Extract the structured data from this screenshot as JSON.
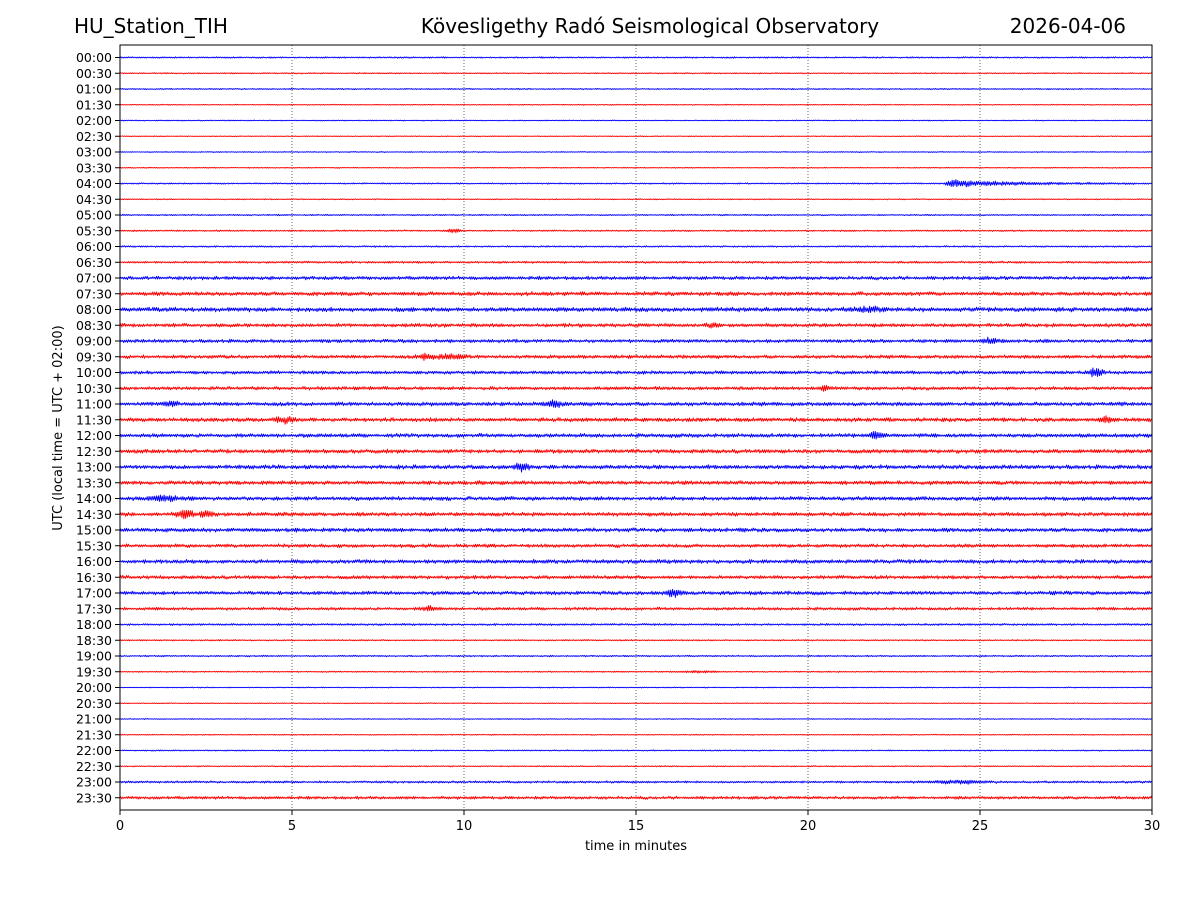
{
  "chart_data": {
    "type": "line",
    "title_left": "HU_Station_TIH",
    "title": "Kövesligethy Radó Seismological Observatory",
    "title_right": "2026-04-06",
    "xlabel": "time in minutes",
    "ylabel": "UTC (local time = UTC + 02:00)",
    "xlim": [
      0,
      30
    ],
    "x_ticks": [
      "0",
      "5",
      "10",
      "15",
      "20",
      "25",
      "30"
    ],
    "grid": "vertical dotted lines at x ticks",
    "trace_colors": [
      "#0000ff",
      "#ff0000"
    ],
    "rows": [
      {
        "label": "00:00",
        "amplitude": 1.5
      },
      {
        "label": "00:30",
        "amplitude": 1.2
      },
      {
        "label": "01:00",
        "amplitude": 1.3
      },
      {
        "label": "01:30",
        "amplitude": 1.0
      },
      {
        "label": "02:00",
        "amplitude": 1.0
      },
      {
        "label": "02:30",
        "amplitude": 0.9
      },
      {
        "label": "03:00",
        "amplitude": 1.0
      },
      {
        "label": "03:30",
        "amplitude": 1.0
      },
      {
        "label": "04:00",
        "amplitude": 1.4,
        "events": [
          {
            "t": 24.2,
            "amp": 8,
            "dur": 4.5
          }
        ]
      },
      {
        "label": "04:30",
        "amplitude": 1.1
      },
      {
        "label": "05:00",
        "amplitude": 1.4
      },
      {
        "label": "05:30",
        "amplitude": 1.6,
        "events": [
          {
            "t": 9.7,
            "amp": 4,
            "dur": 0.3
          }
        ]
      },
      {
        "label": "06:00",
        "amplitude": 1.6
      },
      {
        "label": "06:30",
        "amplitude": 2.2
      },
      {
        "label": "07:00",
        "amplitude": 3.5
      },
      {
        "label": "07:30",
        "amplitude": 4.0
      },
      {
        "label": "08:00",
        "amplitude": 4.5,
        "events": [
          {
            "t": 21.8,
            "amp": 5,
            "dur": 0.6
          }
        ]
      },
      {
        "label": "08:30",
        "amplitude": 3.8,
        "events": [
          {
            "t": 17.2,
            "amp": 5,
            "dur": 0.2
          }
        ]
      },
      {
        "label": "09:00",
        "amplitude": 3.5,
        "events": [
          {
            "t": 25.3,
            "amp": 4,
            "dur": 0.4
          }
        ]
      },
      {
        "label": "09:30",
        "amplitude": 3.6,
        "events": [
          {
            "t": 8.9,
            "amp": 6,
            "dur": 0.3
          },
          {
            "t": 9.6,
            "amp": 6,
            "dur": 0.5
          }
        ]
      },
      {
        "label": "10:00",
        "amplitude": 3.4,
        "events": [
          {
            "t": 28.4,
            "amp": 8,
            "dur": 0.3
          }
        ]
      },
      {
        "label": "10:30",
        "amplitude": 3.5,
        "events": [
          {
            "t": 20.5,
            "amp": 5,
            "dur": 0.2
          }
        ]
      },
      {
        "label": "11:00",
        "amplitude": 4.0,
        "events": [
          {
            "t": 12.6,
            "amp": 6,
            "dur": 0.4
          },
          {
            "t": 1.5,
            "amp": 5,
            "dur": 0.3
          }
        ]
      },
      {
        "label": "11:30",
        "amplitude": 4.0,
        "events": [
          {
            "t": 4.8,
            "amp": 6,
            "dur": 0.4
          },
          {
            "t": 28.7,
            "amp": 6,
            "dur": 0.3
          }
        ]
      },
      {
        "label": "12:00",
        "amplitude": 4.0,
        "events": [
          {
            "t": 22.0,
            "amp": 9,
            "dur": 0.3
          }
        ]
      },
      {
        "label": "12:30",
        "amplitude": 4.0
      },
      {
        "label": "13:00",
        "amplitude": 4.2,
        "events": [
          {
            "t": 11.7,
            "amp": 9,
            "dur": 0.3
          }
        ]
      },
      {
        "label": "13:30",
        "amplitude": 4.0
      },
      {
        "label": "14:00",
        "amplitude": 4.0,
        "events": [
          {
            "t": 1.3,
            "amp": 6,
            "dur": 0.5
          }
        ]
      },
      {
        "label": "14:30",
        "amplitude": 4.0,
        "events": [
          {
            "t": 1.9,
            "amp": 10,
            "dur": 0.3
          },
          {
            "t": 2.5,
            "amp": 6,
            "dur": 0.3
          }
        ]
      },
      {
        "label": "15:00",
        "amplitude": 4.0
      },
      {
        "label": "15:30",
        "amplitude": 3.6
      },
      {
        "label": "16:00",
        "amplitude": 4.0
      },
      {
        "label": "16:30",
        "amplitude": 3.6
      },
      {
        "label": "17:00",
        "amplitude": 3.8,
        "events": [
          {
            "t": 16.1,
            "amp": 7,
            "dur": 0.3
          }
        ]
      },
      {
        "label": "17:30",
        "amplitude": 3.0,
        "events": [
          {
            "t": 9.0,
            "amp": 5,
            "dur": 0.3
          }
        ]
      },
      {
        "label": "18:00",
        "amplitude": 2.0
      },
      {
        "label": "18:30",
        "amplitude": 1.4
      },
      {
        "label": "19:00",
        "amplitude": 1.5
      },
      {
        "label": "19:30",
        "amplitude": 1.3,
        "events": [
          {
            "t": 16.8,
            "amp": 2,
            "dur": 0.6
          }
        ]
      },
      {
        "label": "20:00",
        "amplitude": 1.0
      },
      {
        "label": "20:30",
        "amplitude": 0.9
      },
      {
        "label": "21:00",
        "amplitude": 1.0
      },
      {
        "label": "21:30",
        "amplitude": 1.0
      },
      {
        "label": "22:00",
        "amplitude": 1.2
      },
      {
        "label": "22:30",
        "amplitude": 1.2
      },
      {
        "label": "23:00",
        "amplitude": 2.2,
        "events": [
          {
            "t": 24.3,
            "amp": 3,
            "dur": 1.2
          }
        ]
      },
      {
        "label": "23:30",
        "amplitude": 3.0
      }
    ]
  }
}
